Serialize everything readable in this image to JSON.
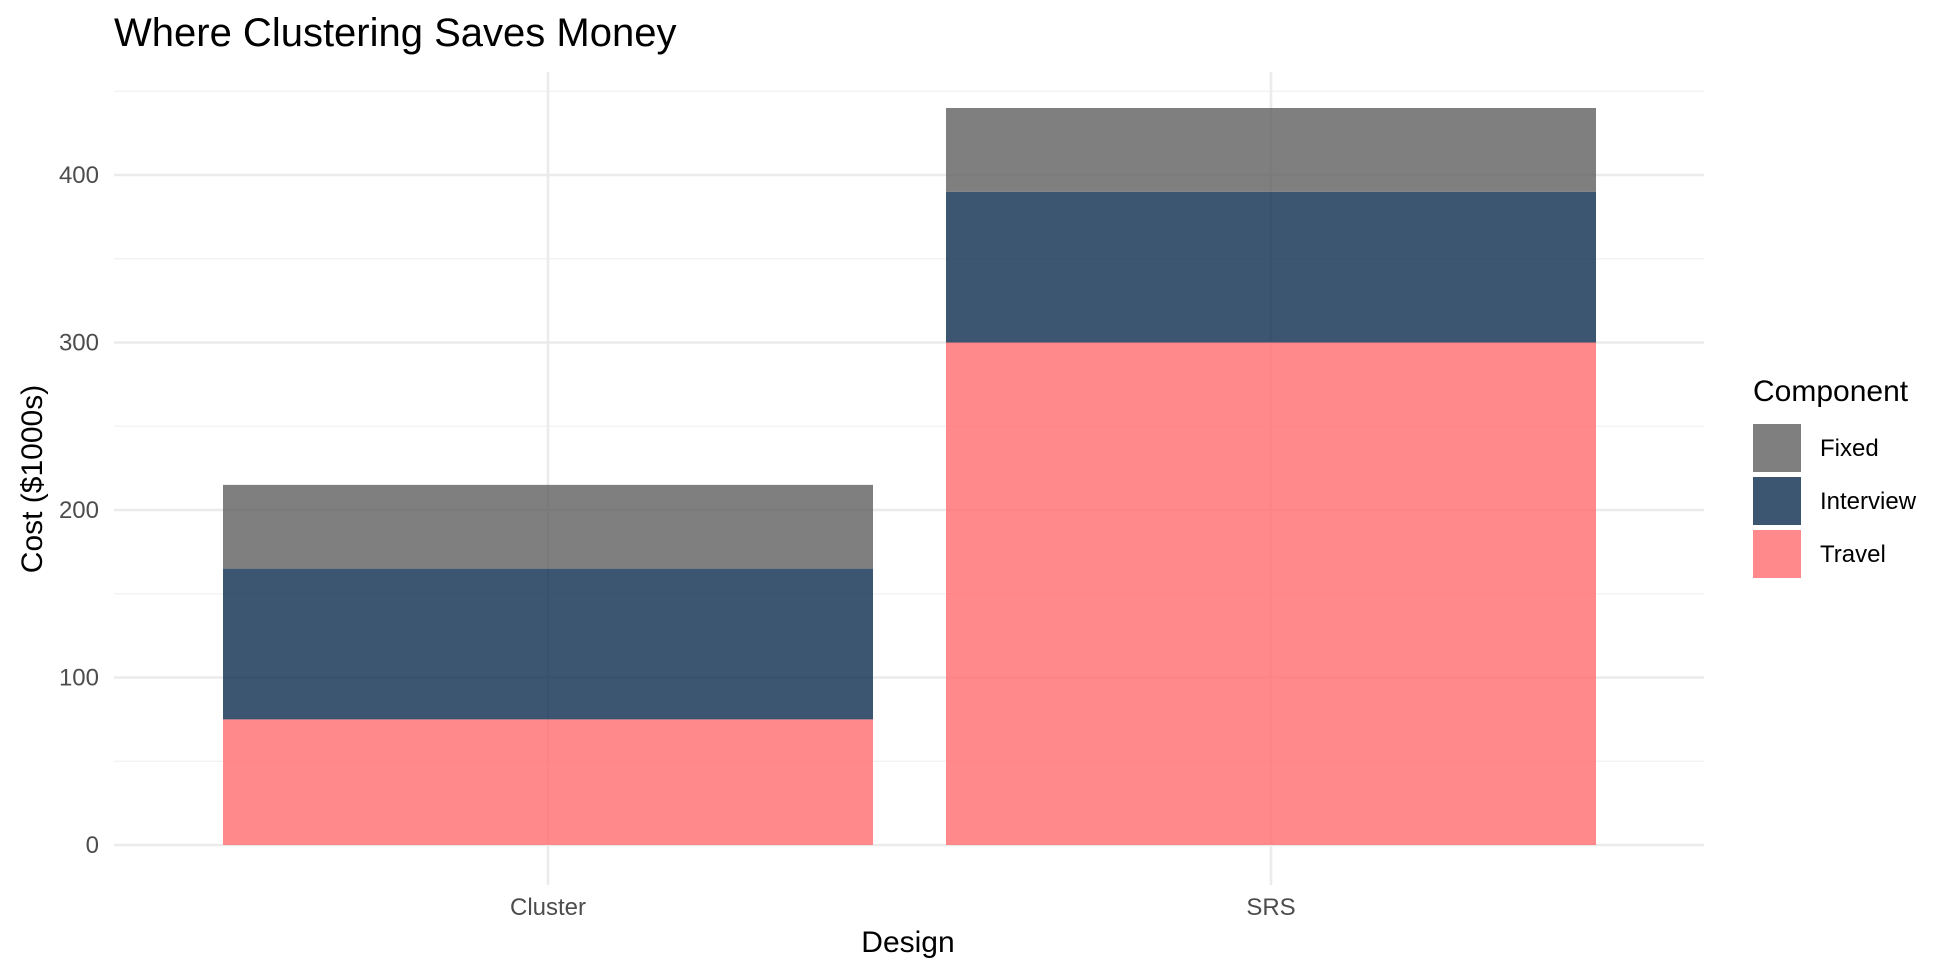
{
  "chart_data": {
    "type": "bar",
    "stacked": true,
    "title": "Where Clustering Saves Money",
    "xlabel": "Design",
    "ylabel": "Cost ($1000s)",
    "categories": [
      "Cluster",
      "SRS"
    ],
    "ylim": [
      0,
      460
    ],
    "yticks": [
      0,
      100,
      200,
      300,
      400
    ],
    "grid": true,
    "legend": {
      "title": "Component",
      "position": "right",
      "entries": [
        "Fixed",
        "Interview",
        "Travel"
      ]
    },
    "series": [
      {
        "name": "Travel",
        "values": [
          75,
          300
        ],
        "color": "#ff6b6e"
      },
      {
        "name": "Interview",
        "values": [
          90,
          90
        ],
        "color": "#0b2c4f"
      },
      {
        "name": "Fixed",
        "values": [
          50,
          50
        ],
        "color": "#5f5f5f"
      }
    ],
    "bar_opacity": 0.8
  }
}
